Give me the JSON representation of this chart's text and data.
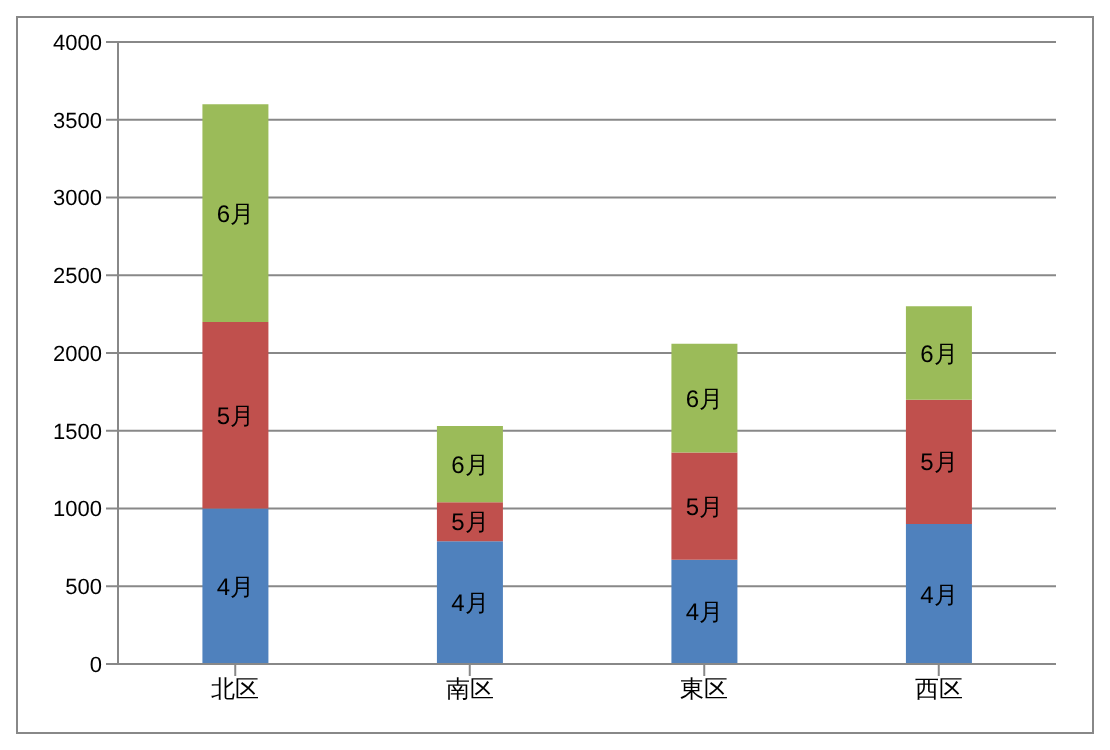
{
  "chart_data": {
    "type": "bar",
    "stacked": true,
    "categories": [
      "北区",
      "南区",
      "東区",
      "西区"
    ],
    "series": [
      {
        "name": "4月",
        "color": "#4f81bd",
        "values": [
          1000,
          790,
          670,
          900
        ]
      },
      {
        "name": "5月",
        "color": "#c0504d",
        "values": [
          1200,
          250,
          690,
          800
        ]
      },
      {
        "name": "6月",
        "color": "#9bbb59",
        "values": [
          1400,
          490,
          700,
          600
        ]
      }
    ],
    "ylim": [
      0,
      4000
    ],
    "yticks": [
      0,
      500,
      1000,
      1500,
      2000,
      2500,
      3000,
      3500,
      4000
    ],
    "grid": "y",
    "legend": false
  }
}
